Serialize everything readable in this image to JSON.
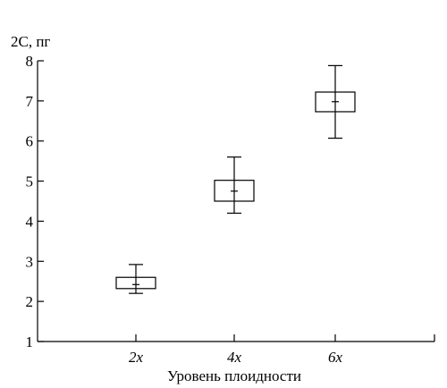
{
  "chart_data": {
    "type": "box",
    "ylabel": "2C, пг",
    "xlabel": "Уровень плоидности",
    "ylim": [
      1,
      8
    ],
    "yticks": [
      "1",
      "2",
      "3",
      "4",
      "5",
      "6",
      "7",
      "8"
    ],
    "categories": [
      "2x",
      "4x",
      "6x"
    ],
    "boxes": [
      {
        "category": "2x",
        "whisker_low": 2.2,
        "q1": 2.32,
        "median": 2.42,
        "q3": 2.6,
        "whisker_high": 2.92
      },
      {
        "category": "4x",
        "whisker_low": 4.2,
        "q1": 4.5,
        "median": 4.75,
        "q3": 5.02,
        "whisker_high": 5.6
      },
      {
        "category": "6x",
        "whisker_low": 6.07,
        "q1": 6.73,
        "median": 6.98,
        "q3": 7.22,
        "whisker_high": 7.88
      }
    ],
    "grid": false,
    "legend": "none"
  }
}
